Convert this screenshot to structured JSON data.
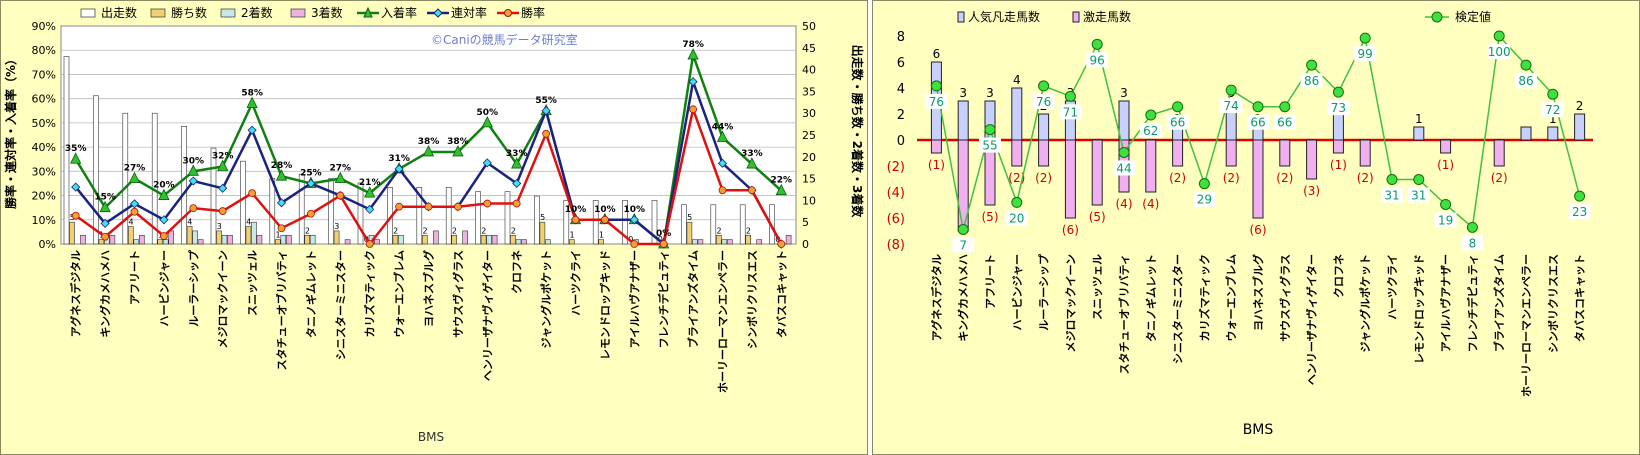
{
  "chart_data": [
    {
      "type": "bar",
      "combo": "bar+line",
      "categories": [
        "アグネスデジタル",
        "キングカメハメハ",
        "アフリート",
        "ハービンジャー",
        "ルーラーシップ",
        "メジロマックイーン",
        "スニッツェル",
        "スタチューオブリバティ",
        "タニノギムレット",
        "シニスターミニスター",
        "カリズマティック",
        "ウォーエンブレム",
        "ヨハネスブルグ",
        "サウスヴィグラス",
        "ヘンリーザナヴィゲイター",
        "クロフネ",
        "ジャングルポケット",
        "ハーツクライ",
        "レモンドロップキッド",
        "アイルハヴアナザー",
        "フレンチデピュティ",
        "ブライアンズタイム",
        "ホーリーローマンエンペラー",
        "シンボリクリスエス",
        "タバスコキャット"
      ],
      "xlabel": "BMS",
      "ylabel_left": "勝率・連対率・入着率（%）",
      "ylabel_right": "出走数・勝ち数・2着数・3着数",
      "ylim_left": [
        0,
        90
      ],
      "ylim_right": [
        0,
        50
      ],
      "yticks_left": [
        "0%",
        "10%",
        "20%",
        "30%",
        "40%",
        "50%",
        "60%",
        "70%",
        "80%",
        "90%"
      ],
      "yticks_right": [
        "0",
        "5",
        "10",
        "15",
        "20",
        "25",
        "30",
        "35",
        "40",
        "45",
        "50"
      ],
      "watermark": "©Caniの競馬データ研究室",
      "legend_position": "top",
      "series": [
        {
          "name": "出走数",
          "kind": "bar",
          "axis": "right",
          "color": "#ffffff",
          "values": [
            43,
            34,
            30,
            30,
            27,
            22,
            19,
            15,
            16,
            15,
            14,
            13,
            13,
            13,
            12,
            12,
            11,
            10,
            10,
            10,
            10,
            9,
            9,
            9,
            9
          ]
        },
        {
          "name": "勝ち数",
          "kind": "bar",
          "axis": "right",
          "color": "#f0d070",
          "values": [
            5,
            1,
            4,
            1,
            4,
            3,
            4,
            1,
            2,
            3,
            0,
            2,
            2,
            2,
            2,
            2,
            5,
            1,
            1,
            0,
            0,
            5,
            2,
            2,
            0
          ]
        },
        {
          "name": "2着数",
          "kind": "bar",
          "axis": "right",
          "color": "#c8e8e8",
          "values": [
            0,
            2,
            1,
            1,
            3,
            2,
            5,
            2,
            2,
            0,
            2,
            2,
            0,
            0,
            2,
            1,
            1,
            0,
            0,
            1,
            0,
            1,
            1,
            0,
            0
          ]
        },
        {
          "name": "3着数",
          "kind": "bar",
          "axis": "right",
          "color": "#f0b0e0",
          "values": [
            2,
            2,
            2,
            3,
            1,
            2,
            2,
            2,
            0,
            1,
            1,
            0,
            3,
            3,
            2,
            1,
            0,
            0,
            0,
            0,
            0,
            1,
            1,
            1,
            2
          ]
        },
        {
          "name": "入着率",
          "kind": "line",
          "axis": "left",
          "color": "#108010",
          "marker": "triangle",
          "values": [
            35,
            15,
            27,
            20,
            30,
            32,
            58,
            28,
            25,
            27,
            21,
            31,
            38,
            38,
            50,
            33,
            55,
            10,
            10,
            10,
            0,
            78,
            44,
            33,
            22
          ]
        },
        {
          "name": "連対率",
          "kind": "line",
          "axis": "left",
          "color": "#1a237e",
          "marker": "diamond",
          "values": [
            23.5,
            8.5,
            16.6,
            10,
            26,
            23,
            47,
            17,
            25,
            20,
            14.3,
            31,
            15.4,
            15.4,
            33.5,
            25,
            55,
            10,
            10,
            10,
            0,
            67,
            33.3,
            22.2,
            0
          ]
        },
        {
          "name": "勝率",
          "kind": "line",
          "axis": "left",
          "color": "#e01010",
          "marker": "circle",
          "values": [
            11.7,
            3,
            13.3,
            3.3,
            14.8,
            13.6,
            21,
            6.5,
            12.5,
            20,
            0,
            15.4,
            15.4,
            15.4,
            16.7,
            16.7,
            45.5,
            10,
            10,
            0,
            0,
            55.6,
            22.2,
            22.2,
            0
          ]
        }
      ],
      "pct_labels": [
        "35%",
        "15%",
        "27%",
        "20%",
        "30%",
        "32%",
        "58%",
        "28%",
        "25%",
        "27%",
        "21%",
        "31%",
        "38%",
        "38%",
        "50%",
        "33%",
        "55%",
        "10%",
        "10%",
        "10%",
        "0%",
        "78%",
        "44%",
        "33%",
        "22%"
      ],
      "win_labels": [
        "5",
        "1",
        "4",
        "1",
        "4",
        "3",
        "4",
        "1",
        "2",
        "3",
        "0",
        "2",
        "2",
        "2",
        "2",
        "2",
        "5",
        "1",
        "1",
        "0",
        "0",
        "5",
        "2",
        "2",
        "0"
      ]
    },
    {
      "type": "bar",
      "combo": "bar+line",
      "categories": [
        "アグネスデジタル",
        "キングカメハメハ",
        "アフリート",
        "ハービンジャー",
        "ルーラーシップ",
        "メジロマックイーン",
        "スニッツェル",
        "スタチューオブリバティ",
        "タニノギムレット",
        "シニスターミニスター",
        "カリズマティック",
        "ウォーエンブレム",
        "ヨハネスブルグ",
        "サウスヴィグラス",
        "ヘンリーザナヴィゲイター",
        "クロフネ",
        "ジャングルポケット",
        "ハーツクライ",
        "レモンドロップキッド",
        "アイルハヴアナザー",
        "フレンチデピュティ",
        "ブライアンズタイム",
        "ホーリーローマンエンペラー",
        "シンボリクリスエス",
        "タバスコキャット"
      ],
      "xlabel": "BMS",
      "ylim": [
        -8,
        8
      ],
      "yticks": [
        "8",
        "6",
        "4",
        "2",
        "0",
        "(2)",
        "(4)",
        "(6)",
        "(8)"
      ],
      "legend_position": "top",
      "series": [
        {
          "name": "人気凡走馬数",
          "kind": "bar",
          "color": "#c8d0ff",
          "values": [
            6,
            3,
            3,
            4,
            2,
            3,
            0,
            3,
            0,
            1,
            0,
            3,
            1,
            0,
            0,
            2,
            0,
            0,
            1,
            0,
            0,
            0,
            1,
            1,
            2
          ]
        },
        {
          "name": "激走馬数",
          "kind": "bar",
          "color": "#f0b0f0",
          "values": [
            -1,
            -7,
            -5,
            -2,
            -2,
            -6,
            -5,
            -4,
            -4,
            -2,
            0,
            -2,
            -6,
            -2,
            -3,
            -1,
            -2,
            0,
            0,
            -1,
            0,
            -2,
            0,
            0,
            0
          ]
        },
        {
          "name": "検定値",
          "kind": "line",
          "color": "#40c040",
          "marker": "circle",
          "values": [
            76,
            7,
            55,
            20,
            76,
            71,
            96,
            44,
            62,
            66,
            29,
            74,
            66,
            66,
            86,
            73,
            99,
            31,
            31,
            19,
            8,
            100,
            86,
            72,
            23
          ]
        }
      ],
      "count_labels": [
        "6",
        "3",
        "3",
        "4",
        "2",
        "3",
        "",
        "3",
        "",
        "1",
        "",
        "3",
        "1",
        "",
        "",
        "2",
        "",
        "",
        "1",
        "",
        "",
        "",
        "",
        "1",
        "2"
      ],
      "neg_labels": [
        "(1)",
        "(7)",
        "(5)",
        "(2)",
        "(2)",
        "(6)",
        "(5)",
        "(4)",
        "(4)",
        "(2)",
        "",
        "(2)",
        "(6)",
        "(2)",
        "(3)",
        "(1)",
        "(2)",
        "",
        "",
        "(1)",
        "",
        "(2)",
        "",
        "",
        ""
      ]
    }
  ]
}
